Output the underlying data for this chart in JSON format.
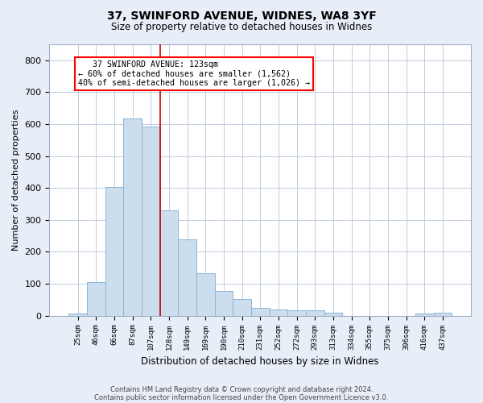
{
  "title1": "37, SWINFORD AVENUE, WIDNES, WA8 3YF",
  "title2": "Size of property relative to detached houses in Widnes",
  "xlabel": "Distribution of detached houses by size in Widnes",
  "ylabel": "Number of detached properties",
  "footer1": "Contains HM Land Registry data © Crown copyright and database right 2024.",
  "footer2": "Contains public sector information licensed under the Open Government Licence v3.0.",
  "annotation_line1": "   37 SWINFORD AVENUE: 123sqm",
  "annotation_line2": "← 60% of detached houses are smaller (1,562)",
  "annotation_line3": "40% of semi-detached houses are larger (1,026) →",
  "bar_labels": [
    "25sqm",
    "46sqm",
    "66sqm",
    "87sqm",
    "107sqm",
    "128sqm",
    "149sqm",
    "169sqm",
    "190sqm",
    "210sqm",
    "231sqm",
    "252sqm",
    "272sqm",
    "293sqm",
    "313sqm",
    "334sqm",
    "355sqm",
    "375sqm",
    "396sqm",
    "416sqm",
    "437sqm"
  ],
  "bar_values": [
    7,
    105,
    403,
    617,
    592,
    330,
    238,
    133,
    78,
    52,
    24,
    20,
    16,
    18,
    9,
    0,
    0,
    0,
    0,
    8,
    10
  ],
  "bar_color": "#ccdded",
  "bar_edge_color": "#8ab4d4",
  "vline_index": 4.5,
  "vline_color": "#cc0000",
  "ylim": [
    0,
    850
  ],
  "yticks": [
    0,
    100,
    200,
    300,
    400,
    500,
    600,
    700,
    800
  ],
  "bg_color": "#e8eef8",
  "plot_bg_color": "#ffffff",
  "grid_color": "#c0ccdd",
  "title1_fontsize": 10,
  "title2_fontsize": 8.5
}
